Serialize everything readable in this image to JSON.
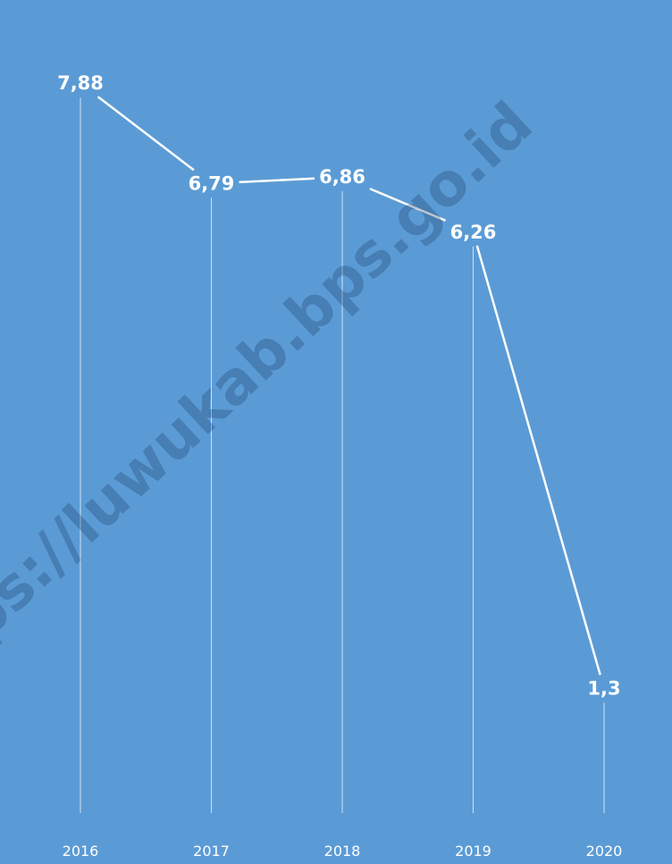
{
  "watermark": "https://luwukab.bps.go.id",
  "colors": {
    "background": "#5b9bd5",
    "line": "#ffffff",
    "drop_line": "#ffffff",
    "watermark": "#16325c"
  },
  "chart_data": {
    "type": "line",
    "categories": [
      "2016",
      "2017",
      "2018",
      "2019",
      "2020"
    ],
    "values": [
      7.88,
      6.79,
      6.86,
      6.26,
      1.3
    ],
    "data_labels": [
      "7,88",
      "6,79",
      "6,86",
      "6,26",
      "1,3"
    ],
    "title": "",
    "xlabel": "",
    "ylabel": "",
    "ylim": [
      -0.3,
      8.3
    ],
    "grid": false,
    "legend": "none",
    "drop_lines": true
  }
}
